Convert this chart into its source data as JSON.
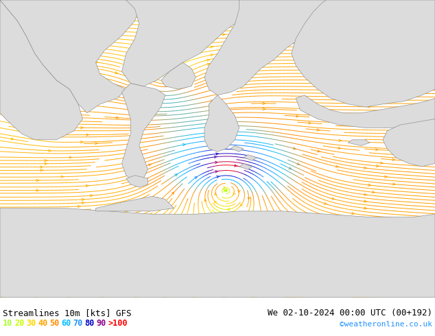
{
  "title_left": "Streamlines 10m [kts] GFS",
  "title_right": "We 02-10-2024 00:00 UTC (00+192)",
  "credit": "©weatheronline.co.uk",
  "legend_values": [
    "10",
    "20",
    "30",
    "40",
    "50",
    "60",
    "70",
    "80",
    "90",
    ">100"
  ],
  "legend_colors": [
    "#adff2f",
    "#c8ff00",
    "#ffd700",
    "#ffa500",
    "#ff8c00",
    "#00bfff",
    "#1e90ff",
    "#0000cd",
    "#8b008b",
    "#ff0000"
  ],
  "bg_color": "#c8ffb0",
  "land_color": "#dcdcdc",
  "border_color": "#808080",
  "figsize": [
    6.34,
    4.9
  ],
  "dpi": 100,
  "text_color": "#000000",
  "title_fontsize": 9,
  "legend_fontsize": 8.5,
  "credit_color": "#1e90ff",
  "credit_fontsize": 8,
  "stream_color_slow": "#adff2f",
  "stream_color_mid": "#ffd700",
  "stream_color_fast": "#ffa500"
}
